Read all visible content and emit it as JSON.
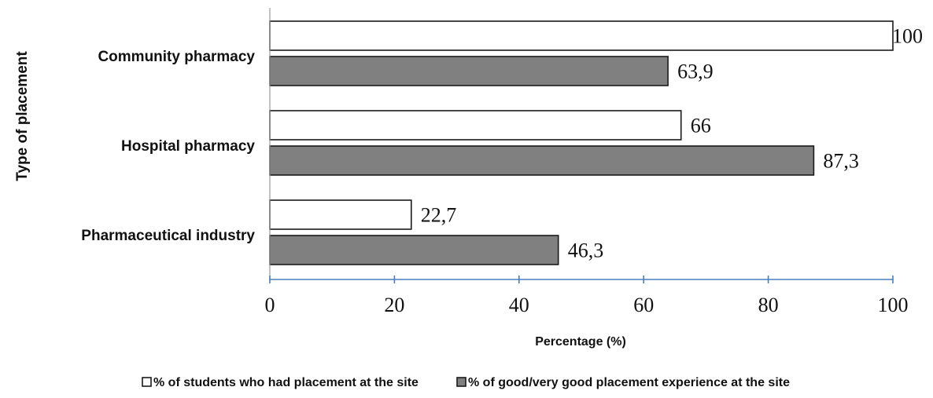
{
  "chart_data": {
    "type": "bar",
    "orientation": "horizontal",
    "categories": [
      "Community pharmacy",
      "Hospital pharmacy",
      "Pharmaceutical industry"
    ],
    "series": [
      {
        "name": "% of students who had placement at the site",
        "values": [
          100,
          66,
          22.7
        ],
        "labels": [
          "100",
          "66",
          "22,7"
        ],
        "color": "#ffffff"
      },
      {
        "name": "% of good/very good placement experience at the site",
        "values": [
          63.9,
          87.3,
          46.3
        ],
        "labels": [
          "63,9",
          "87,3",
          "46,3"
        ],
        "color": "#808080"
      }
    ],
    "xlabel": "Percentage (%)",
    "ylabel": "Type of placement",
    "xlim": [
      0,
      100
    ],
    "xticks": [
      "0",
      "20",
      "40",
      "60",
      "80",
      "100"
    ],
    "legend_position": "bottom",
    "grid": false
  }
}
